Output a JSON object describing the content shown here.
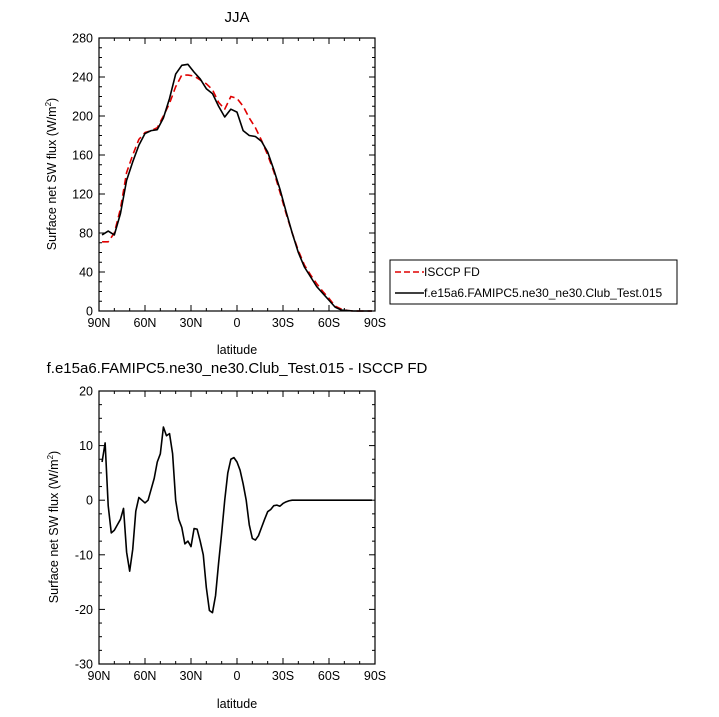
{
  "chart_data": [
    {
      "type": "line",
      "title": "JJA",
      "xlabel": "latitude",
      "ylabel": "Surface net SW flux (W/m",
      "ylabel_sup": "2",
      "ylabel_close": ")",
      "xlim": [
        90,
        -90
      ],
      "ylim": [
        0,
        280
      ],
      "xticks": [
        90,
        60,
        30,
        0,
        -30,
        -60,
        -90
      ],
      "xtick_labels": [
        "90N",
        "60N",
        "30N",
        "0",
        "30S",
        "60S",
        "90S"
      ],
      "yticks": [
        0,
        40,
        80,
        120,
        160,
        200,
        240,
        280
      ],
      "ytick_labels": [
        "0",
        "40",
        "80",
        "120",
        "160",
        "200",
        "240",
        "280"
      ],
      "legend_position": "right",
      "series": [
        {
          "name": "ISCCP FD",
          "color": "#e00000",
          "dash": "dashed",
          "x": [
            88,
            84,
            80,
            76,
            72,
            68,
            64,
            60,
            56,
            52,
            48,
            44,
            40,
            36,
            32,
            28,
            24,
            20,
            16,
            12,
            8,
            4,
            0,
            -4,
            -8,
            -12,
            -16,
            -20,
            -24,
            -28,
            -32,
            -36,
            -40,
            -44,
            -48,
            -52,
            -56,
            -60,
            -64,
            -68,
            -72,
            -76,
            -80,
            -84,
            -88
          ],
          "y": [
            71,
            71,
            80,
            105,
            142,
            160,
            176,
            183,
            185,
            188,
            200,
            213,
            230,
            242,
            242,
            241,
            237,
            233,
            227,
            214,
            207,
            220,
            218,
            210,
            198,
            188,
            175,
            160,
            143,
            122,
            100,
            80,
            62,
            47,
            37,
            28,
            20,
            13,
            5,
            2,
            0.5,
            0,
            0,
            0,
            0
          ]
        },
        {
          "name": "f.e15a6.FAMIPC5.ne30_ne30.Club_Test.015",
          "color": "#000000",
          "dash": "solid",
          "x": [
            88,
            84,
            80,
            76,
            72,
            68,
            64,
            60,
            56,
            52,
            48,
            44,
            40,
            36,
            32,
            28,
            24,
            20,
            16,
            12,
            8,
            4,
            0,
            -4,
            -8,
            -12,
            -16,
            -20,
            -24,
            -28,
            -32,
            -36,
            -40,
            -44,
            -48,
            -52,
            -56,
            -60,
            -64,
            -68,
            -72,
            -76,
            -80,
            -84,
            -88
          ],
          "y": [
            78,
            82,
            78,
            100,
            134,
            153,
            170,
            182,
            185,
            186,
            198,
            218,
            243,
            252,
            253,
            245,
            238,
            228,
            223,
            210,
            199,
            207,
            204,
            185,
            180,
            179,
            174,
            163,
            145,
            125,
            102,
            80,
            60,
            45,
            35,
            25,
            18,
            11,
            4,
            1,
            0.5,
            0,
            0,
            0,
            0
          ]
        }
      ]
    },
    {
      "type": "line",
      "title": "f.e15a6.FAMIPC5.ne30_ne30.Club_Test.015 - ISCCP FD",
      "xlabel": "latitude",
      "ylabel": "Surface net SW flux (W/m",
      "ylabel_sup": "2",
      "ylabel_close": ")",
      "xlim": [
        90,
        -90
      ],
      "ylim": [
        -30,
        20
      ],
      "xticks": [
        90,
        60,
        30,
        0,
        -30,
        -60,
        -90
      ],
      "xtick_labels": [
        "90N",
        "60N",
        "30N",
        "0",
        "30S",
        "60S",
        "90S"
      ],
      "yticks": [
        -30,
        -20,
        -10,
        0,
        10,
        20
      ],
      "ytick_labels": [
        "-30",
        "-20",
        "-10",
        "0",
        "10",
        "20"
      ],
      "series": [
        {
          "color": "#000000",
          "dash": "solid",
          "x": [
            88,
            86,
            84,
            82,
            80,
            78,
            76,
            74,
            72,
            70,
            68,
            66,
            64,
            62,
            60,
            58,
            56,
            54,
            52,
            50,
            48,
            46,
            44,
            42,
            40,
            38,
            36,
            34,
            32,
            30,
            28,
            26,
            24,
            22,
            20,
            18,
            16,
            14,
            12,
            10,
            8,
            6,
            4,
            2,
            0,
            -2,
            -4,
            -6,
            -8,
            -10,
            -12,
            -14,
            -16,
            -18,
            -20,
            -22,
            -24,
            -26,
            -28,
            -30,
            -32,
            -34,
            -36,
            -38,
            -40,
            -42,
            -44,
            -46,
            -48,
            -50,
            -52,
            -54,
            -56,
            -58,
            -60,
            -62,
            -64,
            -66,
            -68,
            -70,
            -72,
            -74,
            -76,
            -78,
            -80,
            -84,
            -88
          ],
          "y": [
            7,
            10.5,
            -1,
            -6,
            -5.5,
            -4.5,
            -3.5,
            -1.5,
            -9.5,
            -13,
            -9,
            -2,
            0.5,
            0,
            -0.5,
            0,
            2,
            4,
            7,
            8.5,
            13.4,
            11.8,
            12.2,
            8.5,
            0,
            -3.5,
            -5,
            -8,
            -7.5,
            -8.5,
            -5.2,
            -5.3,
            -7.5,
            -10,
            -16,
            -20.2,
            -20.6,
            -17.5,
            -11.5,
            -6,
            0,
            5,
            7.5,
            7.8,
            7,
            5.5,
            3,
            0,
            -4.5,
            -7,
            -7.3,
            -6.5,
            -5,
            -3.5,
            -2.1,
            -1.7,
            -1,
            -0.9,
            -1.1,
            -0.6,
            -0.3,
            -0.1,
            0,
            0,
            0,
            0,
            0,
            0,
            0,
            0,
            0,
            0,
            0,
            0,
            0,
            0,
            0,
            0,
            0,
            0,
            0,
            0,
            0,
            0,
            0,
            0,
            0
          ]
        }
      ]
    }
  ]
}
